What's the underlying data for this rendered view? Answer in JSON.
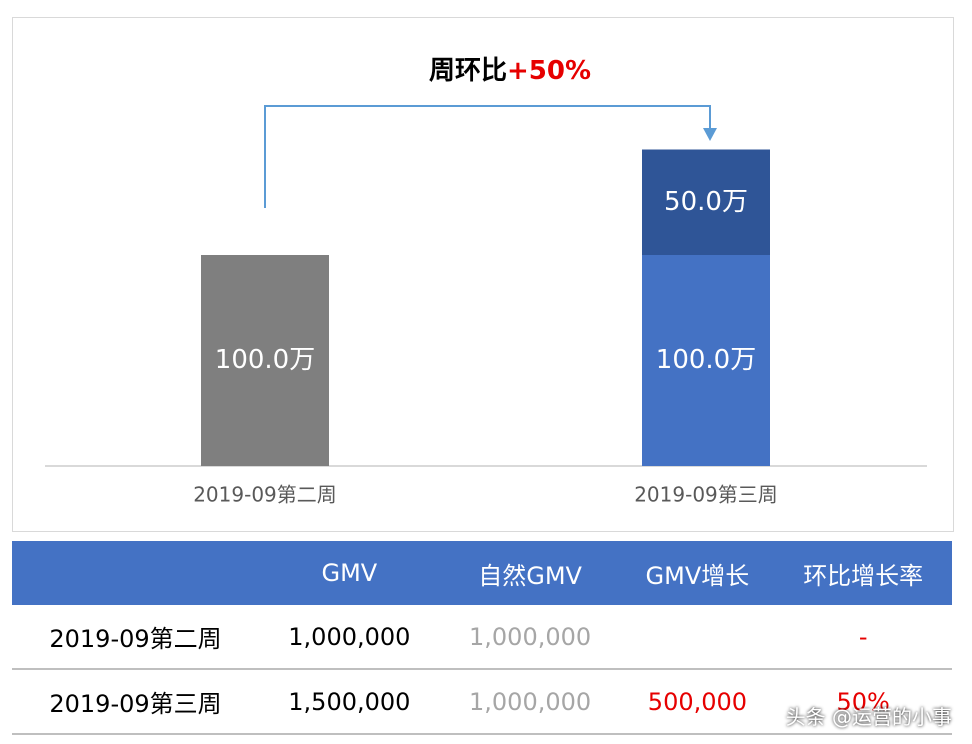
{
  "chart_data": {
    "type": "bar",
    "stacked": true,
    "annotation": {
      "text": "周环比",
      "highlight": "+50%"
    },
    "categories": [
      "2019-09第二周",
      "2019-09第三周"
    ],
    "series": [
      {
        "colors": [
          "#7f7f7f",
          "#4472c4"
        ],
        "values": [
          100,
          100
        ],
        "value_labels": [
          "100.0万",
          "100.0万"
        ]
      },
      {
        "color": "#2f5597",
        "values": [
          null,
          50
        ],
        "value_labels": [
          null,
          "50.0万"
        ]
      }
    ]
  },
  "table": {
    "header": [
      "GMV",
      "自然GMV",
      "GMV增长",
      "环比增长率"
    ],
    "rows": [
      {
        "label": "2019-09第二周",
        "cells": [
          "1,000,000",
          "1,000,000",
          null,
          "-"
        ]
      },
      {
        "label": "2019-09第三周",
        "cells": [
          "1,500,000",
          "1,000,000",
          "500,000",
          "50%"
        ]
      }
    ]
  },
  "watermark": "头条 @运营的小事"
}
